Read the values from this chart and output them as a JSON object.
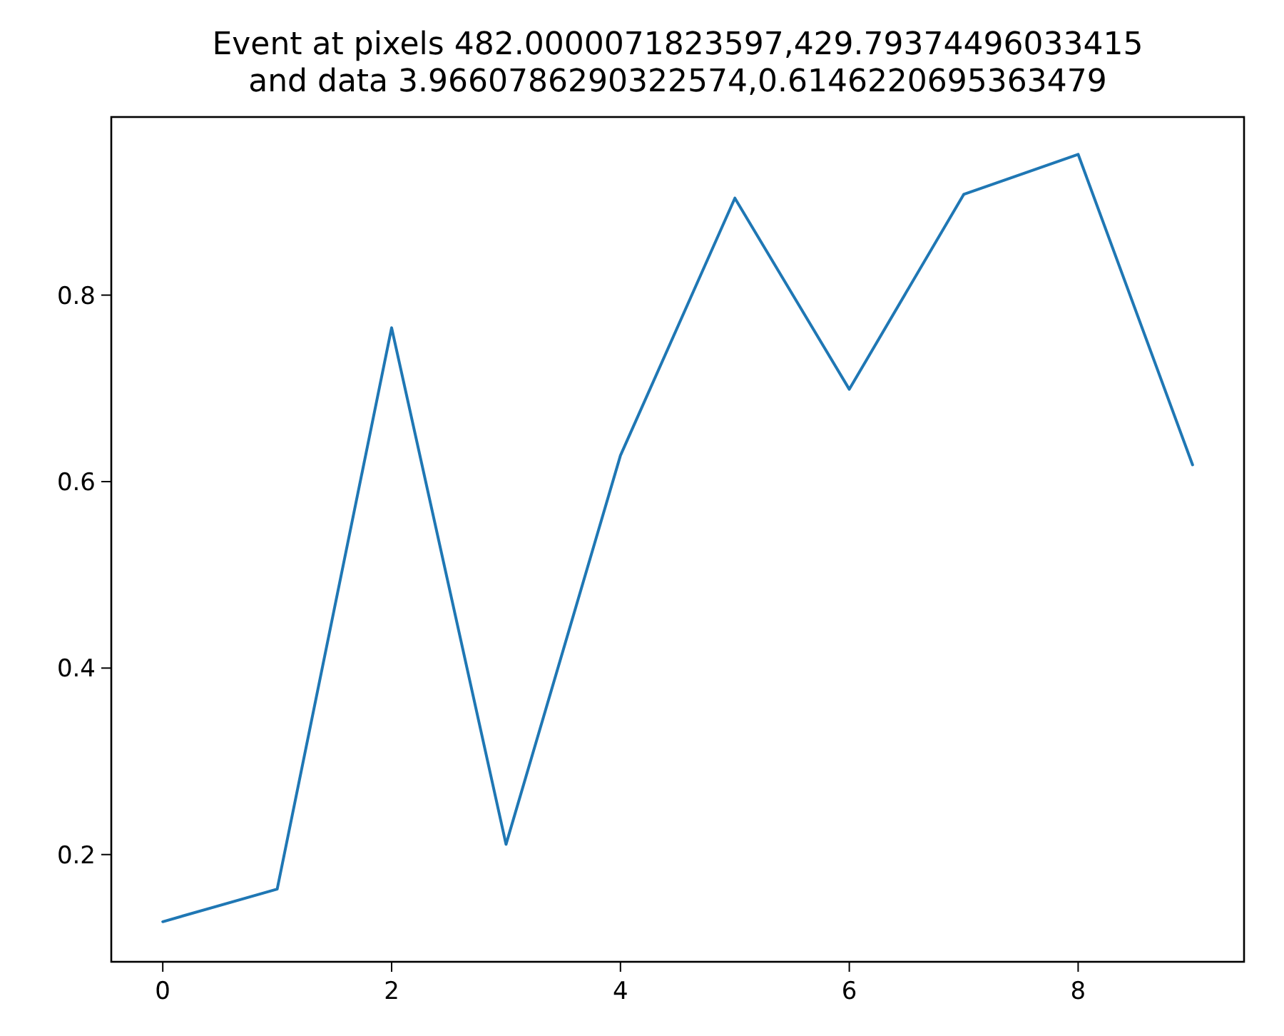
{
  "chart_data": {
    "type": "line",
    "title": "Event at pixels 482.0000071823597,429.79374496033415\nand data 3.9660786290322574,0.6146220695363479",
    "x": [
      0,
      1,
      2,
      3,
      4,
      5,
      6,
      7,
      8,
      9
    ],
    "series": [
      {
        "color": "#1f77b4",
        "values": [
          0.128,
          0.163,
          0.765,
          0.211,
          0.628,
          0.904,
          0.699,
          0.908,
          0.951,
          0.618
        ]
      }
    ],
    "xlim": [
      -0.45,
      9.45
    ],
    "ylim": [
      0.085,
      0.991
    ],
    "xticks": [
      0,
      2,
      4,
      6,
      8
    ],
    "yticks": [
      0.2,
      0.4,
      0.6,
      0.8
    ],
    "marker": "none",
    "line_style": "solid"
  }
}
